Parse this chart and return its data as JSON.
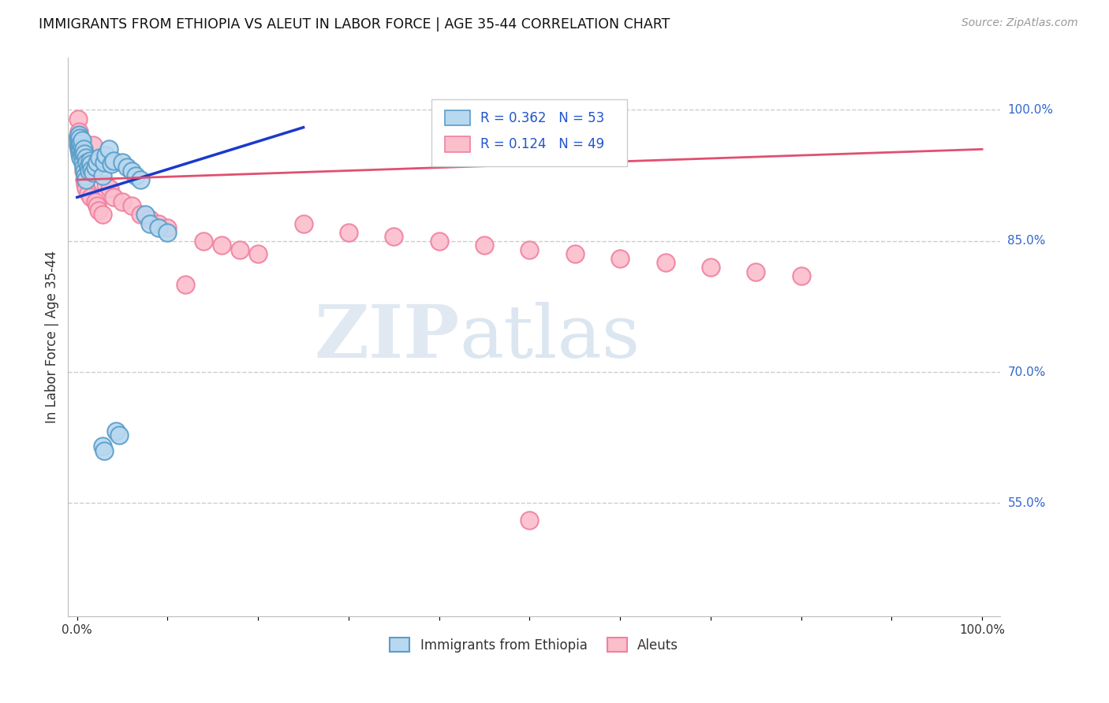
{
  "title": "IMMIGRANTS FROM ETHIOPIA VS ALEUT IN LABOR FORCE | AGE 35-44 CORRELATION CHART",
  "source": "Source: ZipAtlas.com",
  "ylabel": "In Labor Force | Age 35-44",
  "legend_blue": "Immigrants from Ethiopia",
  "legend_pink": "Aleuts",
  "R_blue": 0.362,
  "N_blue": 53,
  "R_pink": 0.124,
  "N_pink": 49,
  "blue_face": "#b8d8f0",
  "blue_edge": "#5a9ec9",
  "pink_face": "#fbbecb",
  "pink_edge": "#f080a0",
  "trendline_blue": "#1a3acc",
  "trendline_pink": "#e05070",
  "ytick_vals": [
    0.55,
    0.7,
    0.85,
    1.0
  ],
  "ytick_labels": [
    "55.0%",
    "70.0%",
    "85.0%",
    "100.0%"
  ],
  "blue_x": [
    0.001,
    0.001,
    0.001,
    0.002,
    0.002,
    0.002,
    0.003,
    0.003,
    0.003,
    0.004,
    0.004,
    0.004,
    0.005,
    0.005,
    0.005,
    0.006,
    0.006,
    0.007,
    0.007,
    0.008,
    0.008,
    0.009,
    0.01,
    0.01,
    0.011,
    0.012,
    0.013,
    0.014,
    0.015,
    0.016,
    0.018,
    0.02,
    0.022,
    0.025,
    0.028,
    0.03,
    0.032,
    0.035,
    0.038,
    0.04,
    0.043,
    0.046,
    0.05,
    0.055,
    0.06,
    0.065,
    0.07,
    0.075,
    0.08,
    0.09,
    0.1,
    0.028,
    0.03
  ],
  "blue_y": [
    0.96,
    0.965,
    0.97,
    0.955,
    0.96,
    0.972,
    0.95,
    0.958,
    0.968,
    0.945,
    0.955,
    0.962,
    0.948,
    0.958,
    0.965,
    0.94,
    0.952,
    0.935,
    0.955,
    0.93,
    0.95,
    0.925,
    0.92,
    0.945,
    0.94,
    0.935,
    0.93,
    0.942,
    0.938,
    0.932,
    0.928,
    0.935,
    0.94,
    0.945,
    0.925,
    0.94,
    0.948,
    0.955,
    0.938,
    0.942,
    0.632,
    0.628,
    0.94,
    0.935,
    0.93,
    0.925,
    0.92,
    0.88,
    0.87,
    0.865,
    0.86,
    0.615,
    0.61
  ],
  "pink_x": [
    0.001,
    0.001,
    0.002,
    0.002,
    0.003,
    0.003,
    0.004,
    0.004,
    0.005,
    0.006,
    0.007,
    0.008,
    0.009,
    0.01,
    0.012,
    0.014,
    0.015,
    0.018,
    0.02,
    0.022,
    0.024,
    0.028,
    0.032,
    0.036,
    0.04,
    0.05,
    0.06,
    0.07,
    0.08,
    0.09,
    0.1,
    0.12,
    0.14,
    0.16,
    0.18,
    0.2,
    0.25,
    0.3,
    0.35,
    0.4,
    0.45,
    0.5,
    0.55,
    0.6,
    0.65,
    0.7,
    0.75,
    0.8,
    0.5
  ],
  "pink_y": [
    0.97,
    0.99,
    0.965,
    0.975,
    0.96,
    0.968,
    0.955,
    0.965,
    0.95,
    0.94,
    0.93,
    0.92,
    0.915,
    0.91,
    0.905,
    0.935,
    0.9,
    0.96,
    0.895,
    0.89,
    0.885,
    0.88,
    0.915,
    0.91,
    0.9,
    0.895,
    0.89,
    0.88,
    0.875,
    0.87,
    0.865,
    0.8,
    0.85,
    0.845,
    0.84,
    0.835,
    0.87,
    0.86,
    0.855,
    0.85,
    0.845,
    0.84,
    0.835,
    0.83,
    0.825,
    0.82,
    0.815,
    0.81,
    0.53
  ],
  "blue_trend_x": [
    0.0,
    0.25
  ],
  "blue_trend_y": [
    0.9,
    0.98
  ],
  "pink_trend_x": [
    0.0,
    1.0
  ],
  "pink_trend_y": [
    0.92,
    0.955
  ],
  "xlim": [
    -0.01,
    1.02
  ],
  "ylim": [
    0.42,
    1.06
  ]
}
